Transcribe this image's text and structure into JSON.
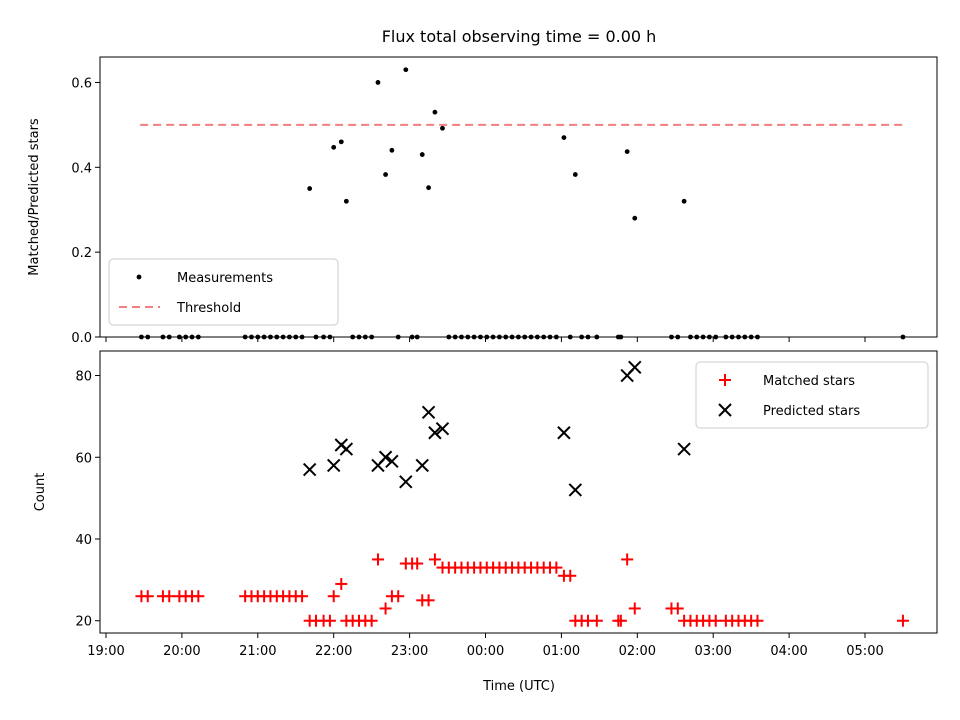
{
  "figure": {
    "title": "Flux total observing time = 0.00 h"
  },
  "chart_data": [
    {
      "type": "scatter",
      "ylabel": "Matched/Predicted stars",
      "xlabel": "",
      "xlim": [
        "19:00",
        "06:00"
      ],
      "ylim": [
        0,
        0.66
      ],
      "yticks": [
        0.0,
        0.2,
        0.4,
        0.6
      ],
      "ytick_labels": [
        "0.0",
        "0.2",
        "0.4",
        "0.6"
      ],
      "show_xtick_labels": false,
      "legend": {
        "placement": "bottom-left",
        "entries": [
          {
            "label": "Measurements",
            "marker": "dot",
            "color": "#000000"
          },
          {
            "label": "Threshold",
            "marker": "dashed-line",
            "color": "#f08080"
          }
        ]
      },
      "threshold": {
        "value": 0.5,
        "x_start": "19:27",
        "x_end": "05:30",
        "color": "#f08080"
      },
      "series": [
        {
          "name": "Measurements",
          "color": "#000000",
          "points": [
            [
              "21:41",
              0.35
            ],
            [
              "22:00",
              0.447
            ],
            [
              "22:06",
              0.46
            ],
            [
              "22:10",
              0.32
            ],
            [
              "22:35",
              0.6
            ],
            [
              "22:41",
              0.383
            ],
            [
              "22:46",
              0.44
            ],
            [
              "22:57",
              0.63
            ],
            [
              "23:10",
              0.43
            ],
            [
              "23:15",
              0.352
            ],
            [
              "23:20",
              0.53
            ],
            [
              "23:26",
              0.492
            ],
            [
              "01:02",
              0.47
            ],
            [
              "01:11",
              0.383
            ],
            [
              "01:52",
              0.437
            ],
            [
              "01:58",
              0.28
            ],
            [
              "02:37",
              0.32
            ],
            [
              "19:28",
              0
            ],
            [
              "19:33",
              0
            ],
            [
              "19:45",
              0
            ],
            [
              "19:50",
              0
            ],
            [
              "19:58",
              0
            ],
            [
              "20:03",
              0
            ],
            [
              "20:08",
              0
            ],
            [
              "20:13",
              0
            ],
            [
              "20:50",
              0
            ],
            [
              "20:55",
              0
            ],
            [
              "21:00",
              0
            ],
            [
              "21:05",
              0
            ],
            [
              "21:10",
              0
            ],
            [
              "21:15",
              0
            ],
            [
              "21:20",
              0
            ],
            [
              "21:25",
              0
            ],
            [
              "21:30",
              0
            ],
            [
              "21:35",
              0
            ],
            [
              "21:46",
              0
            ],
            [
              "21:52",
              0
            ],
            [
              "21:57",
              0
            ],
            [
              "22:15",
              0
            ],
            [
              "22:20",
              0
            ],
            [
              "22:25",
              0
            ],
            [
              "22:30",
              0
            ],
            [
              "22:51",
              0
            ],
            [
              "23:02",
              0
            ],
            [
              "23:06",
              0
            ],
            [
              "23:31",
              0
            ],
            [
              "23:36",
              0
            ],
            [
              "23:41",
              0
            ],
            [
              "23:46",
              0
            ],
            [
              "23:51",
              0
            ],
            [
              "23:56",
              0
            ],
            [
              "00:01",
              0
            ],
            [
              "00:06",
              0
            ],
            [
              "00:11",
              0
            ],
            [
              "00:16",
              0
            ],
            [
              "00:21",
              0
            ],
            [
              "00:26",
              0
            ],
            [
              "00:31",
              0
            ],
            [
              "00:36",
              0
            ],
            [
              "00:41",
              0
            ],
            [
              "00:46",
              0
            ],
            [
              "00:51",
              0
            ],
            [
              "00:56",
              0
            ],
            [
              "01:07",
              0
            ],
            [
              "01:16",
              0
            ],
            [
              "01:21",
              0
            ],
            [
              "01:28",
              0
            ],
            [
              "01:45",
              0
            ],
            [
              "01:47",
              0
            ],
            [
              "02:27",
              0
            ],
            [
              "02:32",
              0
            ],
            [
              "02:42",
              0
            ],
            [
              "02:47",
              0
            ],
            [
              "02:52",
              0
            ],
            [
              "02:57",
              0
            ],
            [
              "03:02",
              0
            ],
            [
              "03:10",
              0
            ],
            [
              "03:15",
              0
            ],
            [
              "03:20",
              0
            ],
            [
              "03:25",
              0
            ],
            [
              "03:30",
              0
            ],
            [
              "03:35",
              0
            ],
            [
              "05:30",
              0
            ]
          ]
        }
      ]
    },
    {
      "type": "scatter",
      "ylabel": "Count",
      "xlabel": "Time (UTC)",
      "xlim": [
        "19:00",
        "06:00"
      ],
      "ylim": [
        17,
        86
      ],
      "yticks": [
        20,
        40,
        60,
        80
      ],
      "ytick_labels": [
        "20",
        "40",
        "60",
        "80"
      ],
      "xticks": [
        "19:00",
        "20:00",
        "21:00",
        "22:00",
        "23:00",
        "00:00",
        "01:00",
        "02:00",
        "03:00",
        "04:00",
        "05:00"
      ],
      "legend": {
        "placement": "top-right",
        "entries": [
          {
            "label": "Matched stars",
            "marker": "plus",
            "color": "#ff0000"
          },
          {
            "label": "Predicted stars",
            "marker": "x",
            "color": "#000000"
          }
        ]
      },
      "series": [
        {
          "name": "Matched stars",
          "color": "#ff0000",
          "marker": "plus",
          "points": [
            [
              "19:28",
              26
            ],
            [
              "19:33",
              26
            ],
            [
              "19:45",
              26
            ],
            [
              "19:50",
              26
            ],
            [
              "19:58",
              26
            ],
            [
              "20:03",
              26
            ],
            [
              "20:08",
              26
            ],
            [
              "20:13",
              26
            ],
            [
              "20:50",
              26
            ],
            [
              "20:55",
              26
            ],
            [
              "21:00",
              26
            ],
            [
              "21:05",
              26
            ],
            [
              "21:10",
              26
            ],
            [
              "21:15",
              26
            ],
            [
              "21:20",
              26
            ],
            [
              "21:25",
              26
            ],
            [
              "21:30",
              26
            ],
            [
              "21:35",
              26
            ],
            [
              "21:41",
              20
            ],
            [
              "21:46",
              20
            ],
            [
              "21:52",
              20
            ],
            [
              "21:57",
              20
            ],
            [
              "22:00",
              26
            ],
            [
              "22:06",
              29
            ],
            [
              "22:10",
              20
            ],
            [
              "22:15",
              20
            ],
            [
              "22:20",
              20
            ],
            [
              "22:25",
              20
            ],
            [
              "22:30",
              20
            ],
            [
              "22:35",
              35
            ],
            [
              "22:41",
              23
            ],
            [
              "22:46",
              26
            ],
            [
              "22:51",
              26
            ],
            [
              "22:57",
              34
            ],
            [
              "23:02",
              34
            ],
            [
              "23:06",
              34
            ],
            [
              "23:10",
              25
            ],
            [
              "23:15",
              25
            ],
            [
              "23:20",
              35
            ],
            [
              "23:26",
              33
            ],
            [
              "23:31",
              33
            ],
            [
              "23:36",
              33
            ],
            [
              "23:41",
              33
            ],
            [
              "23:46",
              33
            ],
            [
              "23:51",
              33
            ],
            [
              "23:56",
              33
            ],
            [
              "00:01",
              33
            ],
            [
              "00:06",
              33
            ],
            [
              "00:11",
              33
            ],
            [
              "00:16",
              33
            ],
            [
              "00:21",
              33
            ],
            [
              "00:26",
              33
            ],
            [
              "00:31",
              33
            ],
            [
              "00:36",
              33
            ],
            [
              "00:41",
              33
            ],
            [
              "00:46",
              33
            ],
            [
              "00:51",
              33
            ],
            [
              "00:56",
              33
            ],
            [
              "01:02",
              31
            ],
            [
              "01:07",
              31
            ],
            [
              "01:11",
              20
            ],
            [
              "01:16",
              20
            ],
            [
              "01:21",
              20
            ],
            [
              "01:28",
              20
            ],
            [
              "01:45",
              20
            ],
            [
              "01:47",
              20
            ],
            [
              "01:52",
              35
            ],
            [
              "01:58",
              23
            ],
            [
              "02:27",
              23
            ],
            [
              "02:32",
              23
            ],
            [
              "02:37",
              20
            ],
            [
              "02:42",
              20
            ],
            [
              "02:47",
              20
            ],
            [
              "02:52",
              20
            ],
            [
              "02:57",
              20
            ],
            [
              "03:02",
              20
            ],
            [
              "03:10",
              20
            ],
            [
              "03:15",
              20
            ],
            [
              "03:20",
              20
            ],
            [
              "03:25",
              20
            ],
            [
              "03:30",
              20
            ],
            [
              "03:35",
              20
            ],
            [
              "05:30",
              20
            ]
          ]
        },
        {
          "name": "Predicted stars",
          "color": "#000000",
          "marker": "x",
          "points": [
            [
              "21:41",
              57
            ],
            [
              "22:00",
              58
            ],
            [
              "22:06",
              63
            ],
            [
              "22:10",
              62
            ],
            [
              "22:35",
              58
            ],
            [
              "22:41",
              60
            ],
            [
              "22:46",
              59
            ],
            [
              "22:57",
              54
            ],
            [
              "23:10",
              58
            ],
            [
              "23:15",
              71
            ],
            [
              "23:20",
              66
            ],
            [
              "23:26",
              67
            ],
            [
              "01:02",
              66
            ],
            [
              "01:11",
              52
            ],
            [
              "01:52",
              80
            ],
            [
              "01:58",
              82
            ],
            [
              "02:37",
              62
            ]
          ]
        }
      ]
    }
  ]
}
